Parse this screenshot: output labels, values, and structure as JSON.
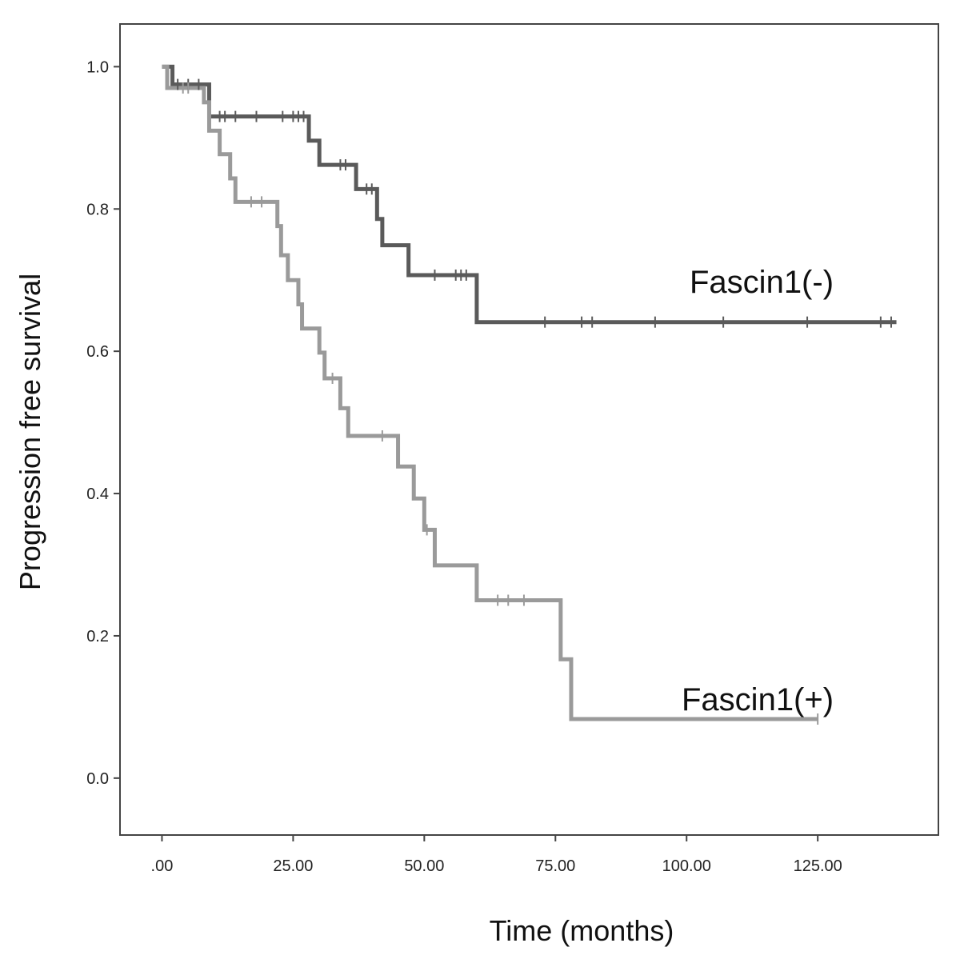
{
  "chart_data": {
    "type": "line",
    "subtype": "kaplan-meier-step",
    "xlabel": "Time (months)",
    "ylabel": "Progression free survival",
    "xlim": [
      -8,
      148
    ],
    "ylim": [
      -0.08,
      1.06
    ],
    "x_ticks": [
      0,
      25,
      50,
      75,
      100,
      125
    ],
    "x_tick_labels": [
      ".00",
      "25.00",
      "50.00",
      "75.00",
      "100.00",
      "125.00"
    ],
    "y_ticks": [
      0,
      0.2,
      0.4,
      0.6,
      0.8,
      1.0
    ],
    "y_tick_labels": [
      "0.0",
      "0.2",
      "0.4",
      "0.6",
      "0.8",
      "1.0"
    ],
    "grid": false,
    "series": [
      {
        "name": "Fascin1(-)",
        "color": "#5a5a5a",
        "steps": [
          [
            0,
            1.0
          ],
          [
            2,
            0.975
          ],
          [
            9,
            0.93
          ],
          [
            28,
            0.896
          ],
          [
            30,
            0.862
          ],
          [
            37,
            0.828
          ],
          [
            41,
            0.786
          ],
          [
            42,
            0.749
          ],
          [
            47,
            0.707
          ],
          [
            60,
            0.641
          ],
          [
            140,
            0.641
          ]
        ],
        "censored": [
          [
            3,
            0.975
          ],
          [
            5,
            0.975
          ],
          [
            7,
            0.975
          ],
          [
            11,
            0.93
          ],
          [
            12,
            0.93
          ],
          [
            14,
            0.93
          ],
          [
            18,
            0.93
          ],
          [
            23,
            0.93
          ],
          [
            25,
            0.93
          ],
          [
            26,
            0.93
          ],
          [
            27,
            0.93
          ],
          [
            34,
            0.862
          ],
          [
            35,
            0.862
          ],
          [
            39,
            0.828
          ],
          [
            40,
            0.828
          ],
          [
            52,
            0.707
          ],
          [
            56,
            0.707
          ],
          [
            57,
            0.707
          ],
          [
            58,
            0.707
          ],
          [
            73,
            0.641
          ],
          [
            80,
            0.641
          ],
          [
            82,
            0.641
          ],
          [
            94,
            0.641
          ],
          [
            107,
            0.641
          ],
          [
            123,
            0.641
          ],
          [
            137,
            0.641
          ],
          [
            139,
            0.641
          ]
        ]
      },
      {
        "name": "Fascin1(+)",
        "color": "#9a9a9a",
        "steps": [
          [
            0,
            1.0
          ],
          [
            1,
            0.97
          ],
          [
            8,
            0.95
          ],
          [
            9,
            0.91
          ],
          [
            11,
            0.877
          ],
          [
            13,
            0.843
          ],
          [
            14,
            0.81
          ],
          [
            22,
            0.776
          ],
          [
            22.7,
            0.735
          ],
          [
            24,
            0.7
          ],
          [
            26,
            0.666
          ],
          [
            26.7,
            0.632
          ],
          [
            30,
            0.598
          ],
          [
            31,
            0.562
          ],
          [
            34,
            0.52
          ],
          [
            35.5,
            0.481
          ],
          [
            45,
            0.438
          ],
          [
            48,
            0.393
          ],
          [
            50,
            0.349
          ],
          [
            52,
            0.299
          ],
          [
            60,
            0.25
          ],
          [
            76,
            0.167
          ],
          [
            78,
            0.083
          ],
          [
            125,
            0.083
          ]
        ],
        "censored": [
          [
            4,
            0.97
          ],
          [
            5,
            0.97
          ],
          [
            17,
            0.81
          ],
          [
            19,
            0.81
          ],
          [
            32.5,
            0.562
          ],
          [
            42,
            0.481
          ],
          [
            50.5,
            0.349
          ],
          [
            64,
            0.25
          ],
          [
            66,
            0.25
          ],
          [
            69,
            0.25
          ],
          [
            125,
            0.083
          ]
        ]
      }
    ]
  },
  "labels": {
    "fascin_neg": "Fascin1(-)",
    "fascin_pos": "Fascin1(+)"
  }
}
